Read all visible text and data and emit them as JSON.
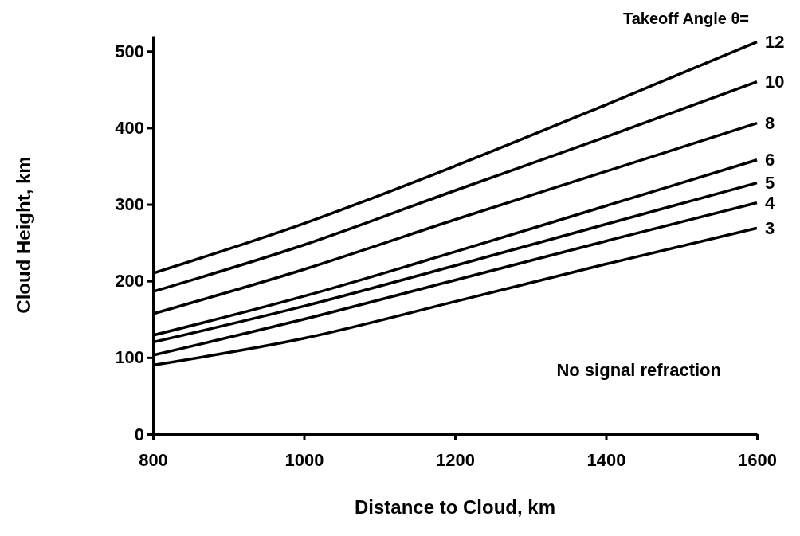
{
  "chart_data": {
    "type": "line",
    "xlabel": "Distance to Cloud, km",
    "ylabel": "Cloud Height, km",
    "legend_title": "Takeoff Angle θ=",
    "x": [
      800,
      1000,
      1200,
      1400,
      1600
    ],
    "series": [
      {
        "name": "12",
        "color": "#000000",
        "values": [
          210,
          275,
          350,
          430,
          512
        ]
      },
      {
        "name": "10",
        "color": "#000000",
        "values": [
          186,
          247,
          318,
          388,
          460
        ]
      },
      {
        "name": "8",
        "color": "#000000",
        "values": [
          157,
          215,
          280,
          343,
          406
        ]
      },
      {
        "name": "6",
        "color": "#000000",
        "values": [
          129,
          180,
          238,
          298,
          358
        ]
      },
      {
        "name": "5",
        "color": "#000000",
        "values": [
          120,
          167,
          220,
          274,
          328
        ]
      },
      {
        "name": "4",
        "color": "#000000",
        "values": [
          103,
          150,
          201,
          252,
          302
        ]
      },
      {
        "name": "3",
        "color": "#000000",
        "values": [
          90,
          125,
          173,
          222,
          269
        ]
      }
    ],
    "xlim": [
      800,
      1600
    ],
    "xticks": [
      800,
      1000,
      1200,
      1400,
      1600
    ],
    "ylim": [
      0,
      520
    ],
    "yticks": [
      0,
      100,
      200,
      300,
      400,
      500
    ],
    "annotations": [
      "No signal refraction"
    ],
    "grid": false,
    "marker": "none",
    "line_style": "solid"
  }
}
